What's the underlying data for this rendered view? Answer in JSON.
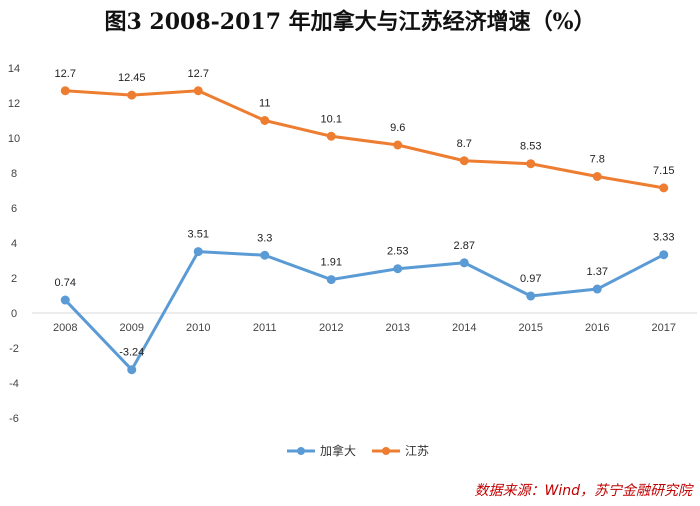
{
  "title": "图3   2008-2017 年加拿大与江苏经济增速（%）",
  "source": "数据来源：Wind，苏宁金融研究院",
  "chart_data": {
    "type": "line",
    "categories": [
      "2008",
      "2009",
      "2010",
      "2011",
      "2012",
      "2013",
      "2014",
      "2015",
      "2016",
      "2017"
    ],
    "series": [
      {
        "name": "加拿大",
        "color": "#5b9bd5",
        "values": [
          0.74,
          -3.24,
          3.51,
          3.3,
          1.91,
          2.53,
          2.87,
          0.97,
          1.37,
          3.33
        ],
        "labels": [
          "0.74",
          "-3.24",
          "3.51",
          "3.3",
          "1.91",
          "2.53",
          "2.87",
          "0.97",
          "1.37",
          "3.33"
        ]
      },
      {
        "name": "江苏",
        "color": "#ed7d31",
        "values": [
          12.7,
          12.45,
          12.7,
          11,
          10.1,
          9.6,
          8.7,
          8.53,
          7.8,
          7.15
        ],
        "labels": [
          "12.7",
          "12.45",
          "12.7",
          "11",
          "10.1",
          "9.6",
          "8.7",
          "8.53",
          "7.8",
          "7.15"
        ]
      }
    ],
    "ylim": [
      -6,
      14
    ],
    "yticks": [
      "-6",
      "-4",
      "-2",
      "0",
      "2",
      "4",
      "6",
      "8",
      "10",
      "12",
      "14"
    ],
    "legend_position": "bottom"
  }
}
